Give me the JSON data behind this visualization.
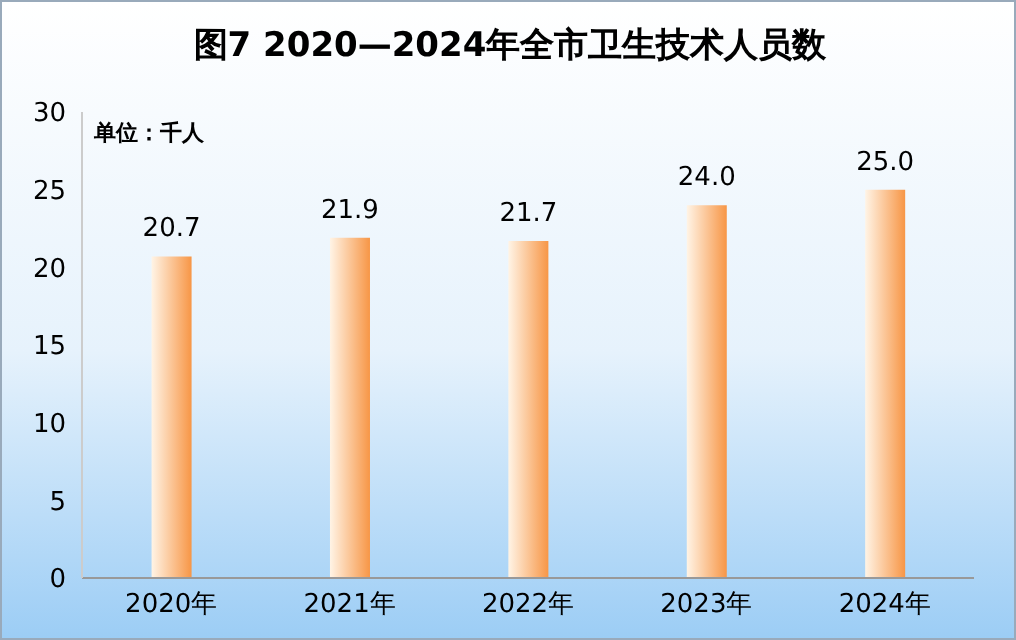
{
  "chart_data": {
    "type": "bar",
    "title": "图7  2020—2024年全市卫生技术人员数",
    "annotations": [
      "单位：千人"
    ],
    "categories": [
      "2020年",
      "2021年",
      "2022年",
      "2023年",
      "2024年"
    ],
    "values": [
      20.7,
      21.9,
      21.7,
      24.0,
      25.0
    ],
    "color": "#f79646",
    "value_labels": [
      "20.7",
      "21.9",
      "21.7",
      "24.0",
      "25.0"
    ],
    "ylim": [
      0,
      30
    ],
    "yticks": [
      0,
      5,
      10,
      15,
      20,
      25,
      30
    ],
    "grid": false,
    "legend": false
  }
}
